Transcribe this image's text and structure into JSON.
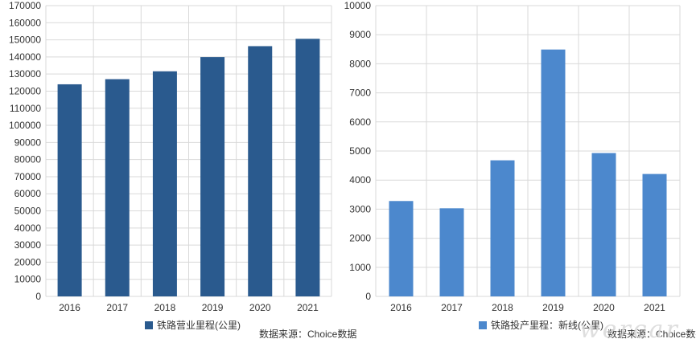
{
  "charts": [
    {
      "source": "数据来源：Choice数据",
      "bar_color": "#2a5a8e"
    },
    {
      "source": "数据来源：Choice数据",
      "bar_color": "#4c88cd"
    }
  ],
  "watermark": "wercar",
  "chart_data": [
    {
      "type": "bar",
      "categories": [
        "2016",
        "2017",
        "2018",
        "2019",
        "2020",
        "2021"
      ],
      "series": [
        {
          "name": "铁路营业里程(公里)",
          "values": [
            124000,
            127000,
            131600,
            139900,
            146300,
            150600
          ]
        }
      ],
      "ylim": [
        0,
        170000
      ],
      "yticks": [
        0,
        10000,
        20000,
        30000,
        40000,
        50000,
        60000,
        70000,
        80000,
        90000,
        100000,
        110000,
        120000,
        130000,
        140000,
        150000,
        160000,
        170000
      ],
      "grid": true,
      "legend": "bottom"
    },
    {
      "type": "bar",
      "categories": [
        "2016",
        "2017",
        "2018",
        "2019",
        "2020",
        "2021"
      ],
      "series": [
        {
          "name": "铁路投产里程：新线(公里)",
          "values": [
            3280,
            3030,
            4680,
            8490,
            4930,
            4210
          ]
        }
      ],
      "ylim": [
        0,
        10000
      ],
      "yticks": [
        0,
        1000,
        2000,
        3000,
        4000,
        5000,
        6000,
        7000,
        8000,
        9000,
        10000
      ],
      "grid": true,
      "legend": "bottom"
    }
  ]
}
